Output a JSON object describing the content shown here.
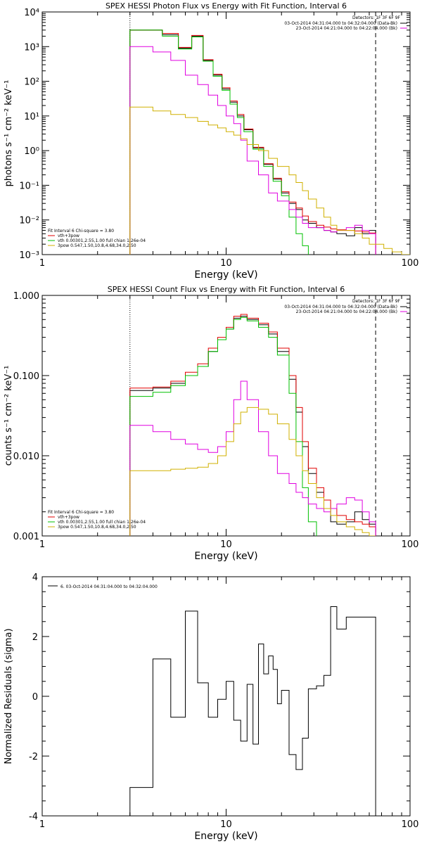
{
  "chart_data": [
    {
      "type": "line",
      "title": "SPEX HESSI Photon Flux vs Energy with Fit Function, Interval 6",
      "xlabel": "Energy (keV)",
      "ylabel": "photons s⁻¹ cm⁻² keV⁻¹",
      "xscale": "log",
      "yscale": "log",
      "xlim": [
        1,
        100
      ],
      "ylim": [
        0.001,
        10000
      ],
      "xtick_labels": [
        "1",
        "10",
        "100"
      ],
      "ytick_labels": [
        "10⁻³",
        "10⁻²",
        "10⁻¹",
        "10⁰",
        "10¹",
        "10²",
        "10³",
        "10⁴"
      ],
      "vlines": [
        {
          "x": 3.0,
          "style": "dotted"
        },
        {
          "x": 65.0,
          "style": "dashed"
        }
      ],
      "legend_header": "Detectors: 1F 3F 6F 9F",
      "legend": [
        {
          "label": "03-Oct-2014 04:31:04.000 to 04:32:04.000 (Data-Bk)",
          "color": "#000000"
        },
        {
          "label": "23-Oct-2014 04:21:04.000 to 04:22:04.000 (Bk)",
          "color": "#e000e0"
        }
      ],
      "fit_legend": [
        {
          "label": "Fit Interval 6   Chi-square = 3.80",
          "color": "#000000"
        },
        {
          "label": "vth+3pow",
          "color": "#e00000"
        },
        {
          "label": "vth 0.00301,2.55,1.00  full chian 1.26e-04",
          "color": "#00c000"
        },
        {
          "label": "3pow 0.547,1.50,10.8,4.68,34.0,2.50",
          "color": "#d0b000"
        }
      ],
      "bin_edges": [
        3.0,
        3.5,
        4.0,
        4.5,
        5.0,
        5.5,
        6.0,
        6.5,
        7.0,
        7.5,
        8.0,
        8.5,
        9.0,
        9.5,
        10.0,
        10.5,
        11.0,
        11.5,
        12.0,
        12.5,
        13.0,
        14.0,
        15.0,
        16.0,
        17.0,
        18.0,
        19.0,
        20.0,
        22.0,
        24.0,
        26.0,
        28.0,
        31.0,
        34.0,
        37.0,
        40.0,
        45.0,
        50.0,
        55.0,
        60.0,
        65.0,
        72.0,
        80.0,
        90.0,
        100.0
      ],
      "series": [
        {
          "color": "#000000",
          "values": [
            3000,
            3000,
            3000,
            2200,
            2200,
            900,
            900,
            2000,
            2000,
            400,
            400,
            150,
            150,
            60,
            60,
            25,
            25,
            10,
            10,
            4,
            4,
            1.2,
            1.2,
            0.4,
            0.4,
            0.15,
            0.15,
            0.06,
            0.03,
            0.02,
            0.01,
            0.008,
            0.006,
            0.005,
            0.0045,
            0.004,
            0.0035,
            0.006,
            0.004,
            0.005
          ]
        },
        {
          "color": "#e00000",
          "values": [
            3000,
            3000,
            3000,
            2400,
            2400,
            950,
            950,
            2100,
            2100,
            420,
            420,
            160,
            160,
            65,
            65,
            27,
            27,
            11,
            11,
            4.2,
            4.2,
            1.25,
            1.25,
            0.42,
            0.42,
            0.16,
            0.16,
            0.065,
            0.033,
            0.022,
            0.013,
            0.009,
            0.007,
            0.0062,
            0.0055,
            0.0052,
            0.005,
            0.0048,
            0.0045,
            0.0042
          ]
        },
        {
          "color": "#00c000",
          "values": [
            3000,
            3000,
            3000,
            2000,
            2000,
            850,
            850,
            1900,
            1900,
            380,
            380,
            140,
            140,
            55,
            55,
            22,
            22,
            9,
            9,
            3.5,
            3.5,
            1.1,
            1.1,
            0.35,
            0.35,
            0.13,
            0.13,
            0.05,
            0.012,
            0.004,
            0.0018
          ]
        },
        {
          "color": "#e000e0",
          "values": [
            1000,
            1000,
            700,
            700,
            400,
            400,
            150,
            150,
            80,
            80,
            40,
            40,
            20,
            20,
            10,
            10,
            6,
            6,
            2,
            2,
            0.5,
            0.5,
            0.2,
            0.2,
            0.06,
            0.06,
            0.035,
            0.035,
            0.02,
            0.012,
            0.008,
            0.006,
            0.006,
            0.005,
            0.0045,
            0.005,
            0.006,
            0.007,
            0.005,
            0.004
          ]
        },
        {
          "color": "#d0b000",
          "values": [
            18,
            18,
            14,
            14,
            11,
            11,
            9,
            9,
            7,
            7,
            5.5,
            5.5,
            4.5,
            4.5,
            3.5,
            3.5,
            2.8,
            2.8,
            2.2,
            2.2,
            1.5,
            1.5,
            1.0,
            1.0,
            0.6,
            0.6,
            0.35,
            0.35,
            0.2,
            0.12,
            0.07,
            0.04,
            0.022,
            0.012,
            0.007,
            0.005,
            0.005,
            0.004,
            0.003,
            0.002,
            0.002,
            0.0015,
            0.0012,
            0.001
          ]
        }
      ]
    },
    {
      "type": "line",
      "title": "SPEX HESSI Count Flux vs Energy with Fit Function, Interval 6",
      "xlabel": "Energy (keV)",
      "ylabel": "counts s⁻¹ cm⁻² keV⁻¹",
      "xscale": "log",
      "yscale": "log",
      "xlim": [
        1,
        100
      ],
      "ylim": [
        0.001,
        1.0
      ],
      "xtick_labels": [
        "1",
        "10",
        "100"
      ],
      "ytick_labels": [
        "0.001",
        "0.010",
        "0.100",
        "1.000"
      ],
      "vlines": [
        {
          "x": 3.0,
          "style": "dotted"
        },
        {
          "x": 65.0,
          "style": "dashed"
        }
      ],
      "legend_header": "Detectors: 1F 3F 6F 9F",
      "legend": [
        {
          "label": "03-Oct-2014 04:31:04.000 to 04:32:04.000 (Data-Bk)",
          "color": "#000000"
        },
        {
          "label": "23-Oct-2014 04:21:04.000 to 04:22:04.000 (Bk)",
          "color": "#e000e0"
        }
      ],
      "fit_legend": [
        {
          "label": "Fit Interval 6   Chi-square = 3.80",
          "color": "#000000"
        },
        {
          "label": "vth+3pow",
          "color": "#e00000"
        },
        {
          "label": "vth 0.00301,2.55,1.00  full chian 1.26e-04",
          "color": "#00c000"
        },
        {
          "label": "3pow 0.547,1.50,10.8,4.68,34.0,2.50",
          "color": "#d0b000"
        }
      ],
      "bin_edges": [
        3.0,
        3.5,
        4.0,
        4.5,
        5.0,
        5.5,
        6.0,
        6.5,
        7.0,
        7.5,
        8.0,
        8.5,
        9.0,
        9.5,
        10.0,
        10.5,
        11.0,
        11.5,
        12.0,
        12.5,
        13.0,
        14.0,
        15.0,
        16.0,
        17.0,
        18.0,
        19.0,
        20.0,
        22.0,
        24.0,
        26.0,
        28.0,
        31.0,
        34.0,
        37.0,
        40.0,
        45.0,
        50.0,
        55.0,
        60.0,
        65.0,
        72.0,
        80.0,
        90.0,
        100.0
      ],
      "series": [
        {
          "color": "#000000",
          "values": [
            0.065,
            0.065,
            0.07,
            0.07,
            0.08,
            0.08,
            0.1,
            0.1,
            0.13,
            0.13,
            0.2,
            0.2,
            0.28,
            0.28,
            0.38,
            0.38,
            0.52,
            0.52,
            0.55,
            0.55,
            0.5,
            0.5,
            0.43,
            0.43,
            0.33,
            0.33,
            0.2,
            0.2,
            0.09,
            0.035,
            0.013,
            0.006,
            0.0035,
            0.0022,
            0.0015,
            0.0014,
            0.0015,
            0.002,
            0.0016,
            0.0014
          ]
        },
        {
          "color": "#e00000",
          "values": [
            0.07,
            0.07,
            0.072,
            0.072,
            0.085,
            0.085,
            0.11,
            0.11,
            0.14,
            0.14,
            0.22,
            0.22,
            0.3,
            0.3,
            0.4,
            0.4,
            0.55,
            0.55,
            0.58,
            0.58,
            0.52,
            0.52,
            0.45,
            0.45,
            0.35,
            0.35,
            0.22,
            0.22,
            0.1,
            0.04,
            0.015,
            0.007,
            0.004,
            0.0028,
            0.0022,
            0.0018,
            0.0016,
            0.0015,
            0.0014,
            0.0013
          ]
        },
        {
          "color": "#00c000",
          "values": [
            0.055,
            0.055,
            0.062,
            0.062,
            0.075,
            0.075,
            0.1,
            0.1,
            0.13,
            0.13,
            0.2,
            0.2,
            0.28,
            0.28,
            0.38,
            0.38,
            0.5,
            0.5,
            0.53,
            0.53,
            0.48,
            0.48,
            0.4,
            0.4,
            0.3,
            0.3,
            0.18,
            0.18,
            0.06,
            0.015,
            0.004,
            0.0015
          ]
        },
        {
          "color": "#e000e0",
          "values": [
            0.024,
            0.024,
            0.02,
            0.02,
            0.016,
            0.016,
            0.014,
            0.014,
            0.012,
            0.012,
            0.011,
            0.011,
            0.013,
            0.013,
            0.02,
            0.02,
            0.05,
            0.05,
            0.085,
            0.085,
            0.05,
            0.05,
            0.02,
            0.02,
            0.01,
            0.01,
            0.006,
            0.006,
            0.0045,
            0.0035,
            0.003,
            0.0025,
            0.0022,
            0.002,
            0.0022,
            0.0025,
            0.003,
            0.0028,
            0.002,
            0.0015
          ]
        },
        {
          "color": "#d0b000",
          "values": [
            0.0065,
            0.0065,
            0.0065,
            0.0065,
            0.0068,
            0.0068,
            0.007,
            0.007,
            0.0072,
            0.0072,
            0.008,
            0.008,
            0.01,
            0.01,
            0.015,
            0.015,
            0.025,
            0.025,
            0.035,
            0.035,
            0.04,
            0.04,
            0.038,
            0.038,
            0.033,
            0.033,
            0.025,
            0.025,
            0.016,
            0.01,
            0.0065,
            0.0045,
            0.003,
            0.0022,
            0.0018,
            0.0015,
            0.0013,
            0.0012,
            0.0011,
            0.001
          ]
        }
      ]
    },
    {
      "type": "line",
      "title": "",
      "xlabel": "Energy (keV)",
      "ylabel": "Normalized Residuals (sigma)",
      "xscale": "log",
      "yscale": "linear",
      "xlim": [
        1,
        100
      ],
      "ylim": [
        -4,
        4
      ],
      "xtick_labels": [
        "1",
        "10",
        "100"
      ],
      "ytick_labels": [
        "-4",
        "-2",
        "0",
        "2",
        "4"
      ],
      "legend": [
        {
          "label": "6. 03-Oct-2014 04:31:04.000 to 04:32:04.000",
          "color": "#000000"
        }
      ],
      "bin_edges": [
        3.0,
        3.5,
        4.0,
        4.5,
        5.0,
        5.5,
        6.0,
        6.5,
        7.0,
        7.5,
        8.0,
        8.5,
        9.0,
        9.5,
        10.0,
        10.5,
        11.0,
        11.5,
        12.0,
        12.5,
        13.0,
        14.0,
        15.0,
        16.0,
        17.0,
        18.0,
        19.0,
        20.0,
        22.0,
        24.0,
        26.0,
        28.0,
        31.0,
        34.0,
        37.0,
        40.0,
        45.0,
        50.0,
        55.0,
        60.0,
        65.0
      ],
      "series": [
        {
          "color": "#000000",
          "values": [
            -3.05,
            -3.05,
            1.25,
            1.25,
            -0.7,
            -0.7,
            2.85,
            2.85,
            0.45,
            0.45,
            -0.7,
            -0.7,
            -0.1,
            -0.1,
            0.5,
            0.5,
            -0.8,
            -0.8,
            -1.5,
            -1.5,
            0.4,
            -1.6,
            1.75,
            0.75,
            1.35,
            0.9,
            -0.25,
            0.2,
            -1.95,
            -2.45,
            -1.4,
            0.25,
            0.35,
            0.7,
            3.0,
            2.25,
            2.65,
            2.65,
            2.65,
            2.65
          ]
        }
      ]
    }
  ]
}
